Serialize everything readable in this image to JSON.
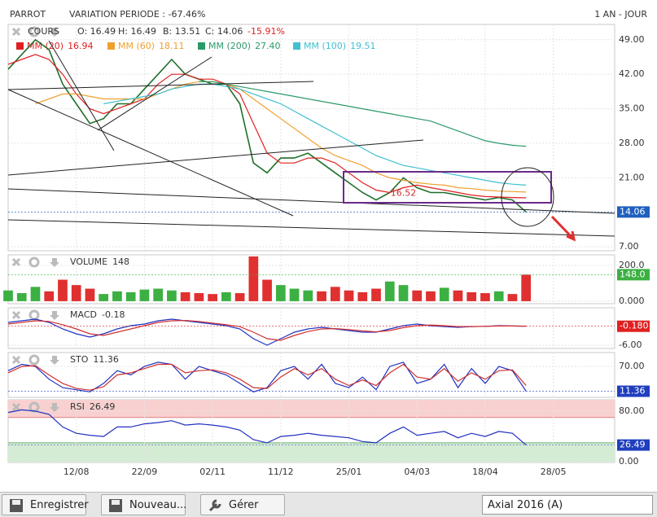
{
  "header": {
    "title": "PARROT",
    "variation": "VARIATION PERIODE : -67.46%",
    "period": "1 AN - JOUR"
  },
  "toolbar": {
    "save": "Enregistrer",
    "new": "Nouveau...",
    "manage": "Gérer",
    "select": "Axial 2016 (A)"
  },
  "chart_data": [
    {
      "type": "line",
      "title": "COURS",
      "stats": [
        "O: 16.49",
        "H: 16.49",
        "B: 13.51",
        "C: 14.06"
      ],
      "change": "-15.91%",
      "last_box": "14.06",
      "x": [
        0,
        2,
        4,
        6,
        8,
        10,
        12,
        14,
        16,
        18,
        20,
        22,
        24,
        26,
        28,
        30,
        32,
        34,
        36,
        38,
        40,
        42,
        44,
        46,
        48,
        50,
        52,
        54,
        56,
        58,
        60,
        62,
        64,
        66,
        68,
        70,
        72,
        74,
        76
      ],
      "xlim": [
        0,
        89
      ],
      "xticks": [
        {
          "value": 10,
          "label": "12/08"
        },
        {
          "value": 20,
          "label": "22/09"
        },
        {
          "value": 30,
          "label": "02/11"
        },
        {
          "value": 40,
          "label": "11/12"
        },
        {
          "value": 50,
          "label": "25/01"
        },
        {
          "value": 60,
          "label": "04/03"
        },
        {
          "value": 70,
          "label": "18/04"
        },
        {
          "value": 80,
          "label": "28/05"
        }
      ],
      "ylim": [
        6.2,
        52.1
      ],
      "yticks": [
        {
          "value": 7,
          "label": "7.00"
        },
        {
          "value": 14,
          "label": "14.00"
        },
        {
          "value": 21,
          "label": "21.00"
        },
        {
          "value": 28,
          "label": "28.00"
        },
        {
          "value": 35,
          "label": "35.00"
        },
        {
          "value": 42,
          "label": "42.00"
        },
        {
          "value": 49,
          "label": "49.00"
        }
      ],
      "annotation": {
        "value": 16.52,
        "label": "16.52",
        "x": 58
      },
      "series": [
        {
          "name": "COURS",
          "color": "#1f6f2a",
          "values": [
            43,
            46,
            49,
            47,
            40,
            36,
            32,
            33,
            36,
            36,
            39,
            42,
            45,
            42,
            41,
            40,
            40,
            36,
            24,
            22,
            25,
            25,
            26,
            24,
            22,
            20,
            18,
            16.5,
            18,
            21,
            19,
            18,
            18,
            17.5,
            17,
            16.5,
            17,
            16.5,
            14.06
          ]
        },
        {
          "name": "MM (20)",
          "legend_value": "16.94",
          "color": "#e02020",
          "values": [
            44,
            45,
            46,
            45,
            42,
            38,
            35,
            34,
            35,
            36,
            37,
            40,
            42,
            42,
            41,
            41,
            40,
            38,
            32,
            26,
            24,
            24,
            25,
            25,
            24,
            22,
            20,
            18.5,
            18,
            19,
            19.5,
            19,
            18.5,
            18,
            17.5,
            17.2,
            17.1,
            17,
            16.94
          ]
        },
        {
          "name": "MM (60)",
          "legend_value": "18.11",
          "color": "#f0a030",
          "values": [
            null,
            null,
            36,
            37,
            38,
            38,
            37.5,
            37,
            37,
            37,
            37,
            38,
            39,
            40,
            40.5,
            40.5,
            40,
            39,
            37,
            35,
            33,
            31,
            29,
            27,
            25.5,
            24.5,
            23.5,
            22,
            21,
            20.5,
            20,
            19.7,
            19.5,
            19,
            18.8,
            18.5,
            18.3,
            18.2,
            18.11
          ]
        },
        {
          "name": "MM (200)",
          "legend_value": "27.40",
          "color": "#2a9a6a",
          "values": [
            null,
            null,
            null,
            null,
            null,
            null,
            null,
            null,
            null,
            null,
            null,
            null,
            null,
            null,
            40.5,
            40.5,
            40,
            39.5,
            39,
            38.5,
            38,
            37.5,
            37,
            36.5,
            36,
            35.5,
            35,
            34.5,
            34,
            33.5,
            33,
            32.5,
            31.5,
            30.5,
            29.5,
            28.5,
            28,
            27.6,
            27.4
          ]
        },
        {
          "name": "MM (100)",
          "legend_value": "19.51",
          "color": "#40c0d0",
          "values": [
            null,
            null,
            null,
            null,
            null,
            null,
            null,
            36,
            36.5,
            37,
            37.5,
            38,
            39,
            39.5,
            40,
            40,
            39.5,
            39,
            38,
            37,
            36,
            34.5,
            33,
            31.5,
            30,
            28.5,
            27,
            25.5,
            24.5,
            23.5,
            23,
            22.5,
            22,
            21.5,
            21,
            20.5,
            20,
            19.7,
            19.51
          ]
        }
      ]
    },
    {
      "type": "bar",
      "title": "VOLUME",
      "last_box": "148.0",
      "up_color": "#3cb043",
      "down_color": "#e03030",
      "ylim": [
        -14,
        259
      ],
      "yticks": [
        {
          "value": 200,
          "label": "200.0"
        },
        {
          "value": 0,
          "label": "0.000"
        }
      ],
      "series": [
        {
          "name": "VOLUME",
          "values": [
            60,
            45,
            80,
            55,
            120,
            90,
            70,
            40,
            55,
            50,
            65,
            70,
            60,
            50,
            45,
            40,
            50,
            45,
            250,
            120,
            90,
            70,
            60,
            55,
            80,
            60,
            50,
            70,
            110,
            90,
            60,
            55,
            75,
            60,
            50,
            45,
            55,
            40,
            148
          ]
        }
      ]
    },
    {
      "type": "line",
      "title": "MACD",
      "last_box": "-0.180",
      "ylim": [
        -7,
        5.5
      ],
      "yticks": [
        {
          "value": -6,
          "label": "-6.00"
        }
      ],
      "series": [
        {
          "name": "MACD",
          "color": "#2030c0",
          "values": [
            1,
            1.5,
            2,
            1,
            -1,
            -2.5,
            -3.5,
            -2.5,
            -1,
            0,
            0.5,
            1.5,
            2,
            1.5,
            1,
            0.5,
            0,
            -1,
            -4,
            -6,
            -4,
            -2,
            -1,
            -0.5,
            -1,
            -1.5,
            -2,
            -2,
            -1,
            0,
            0.5,
            0,
            -0.3,
            -0.5,
            -0.3,
            -0.2,
            0,
            -0.1,
            -0.18
          ]
        },
        {
          "color": "#d03030",
          "values": [
            0.5,
            1,
            1.5,
            1.3,
            0.3,
            -1,
            -2.5,
            -3,
            -2,
            -1,
            0,
            1,
            1.5,
            1.6,
            1.3,
            0.8,
            0.3,
            -0.3,
            -2,
            -4,
            -4.5,
            -3,
            -1.8,
            -1,
            -0.9,
            -1.2,
            -1.6,
            -1.9,
            -1.5,
            -0.6,
            0,
            0.2,
            0,
            -0.3,
            -0.3,
            -0.2,
            -0.1,
            -0.1,
            -0.15
          ]
        }
      ]
    },
    {
      "type": "line",
      "title": "STO",
      "last_box": "11.36",
      "ylim": [
        -3,
        103
      ],
      "yticks": [
        {
          "value": 70,
          "label": "70.00"
        }
      ],
      "series": [
        {
          "name": "STO",
          "color": "#2030c0",
          "values": [
            60,
            75,
            70,
            40,
            20,
            15,
            10,
            30,
            60,
            50,
            70,
            80,
            75,
            40,
            70,
            60,
            50,
            30,
            10,
            20,
            60,
            70,
            40,
            75,
            30,
            20,
            45,
            15,
            70,
            80,
            30,
            40,
            75,
            20,
            65,
            30,
            70,
            60,
            11.36
          ]
        },
        {
          "color": "#d03030",
          "values": [
            55,
            70,
            72,
            50,
            30,
            18,
            14,
            22,
            50,
            55,
            65,
            75,
            75,
            55,
            60,
            62,
            55,
            40,
            20,
            18,
            45,
            65,
            50,
            65,
            40,
            25,
            38,
            25,
            55,
            75,
            45,
            40,
            65,
            35,
            55,
            40,
            60,
            62,
            25
          ]
        }
      ]
    },
    {
      "type": "line",
      "title": "RSI",
      "last_box": "26.49",
      "ylim": [
        -1,
        98
      ],
      "yticks": [
        {
          "value": 80,
          "label": "80.00"
        },
        {
          "value": 0,
          "label": "0.00"
        }
      ],
      "bands": [
        30,
        70
      ],
      "series": [
        {
          "name": "RSI",
          "color": "#2030c0",
          "values": [
            78,
            82,
            80,
            75,
            55,
            45,
            42,
            40,
            55,
            55,
            60,
            62,
            65,
            58,
            60,
            58,
            55,
            50,
            35,
            30,
            40,
            42,
            45,
            42,
            40,
            38,
            32,
            30,
            45,
            55,
            42,
            45,
            48,
            38,
            45,
            40,
            48,
            45,
            26.49
          ]
        }
      ]
    }
  ]
}
